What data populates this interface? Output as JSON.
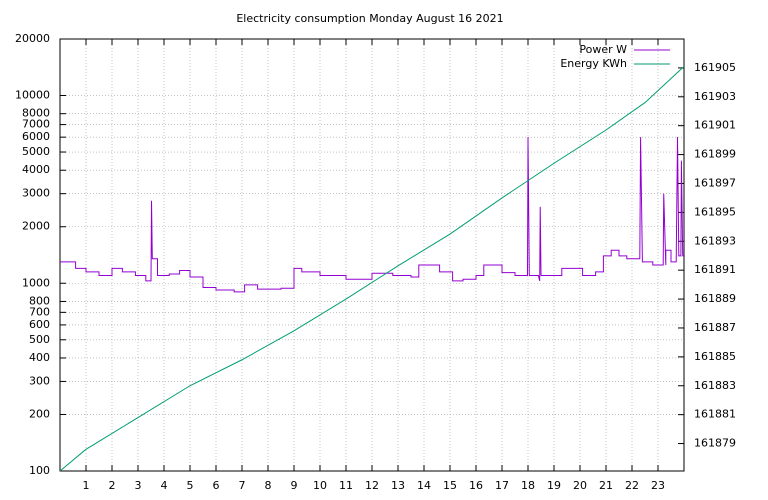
{
  "chart_data": {
    "type": "line",
    "title": "Electricity consumption Monday August 16 2021",
    "log_y": true,
    "grid": true,
    "legend": "top-right",
    "xlim": [
      0,
      24
    ],
    "xticks": [
      1,
      2,
      3,
      4,
      5,
      6,
      7,
      8,
      9,
      10,
      11,
      12,
      13,
      14,
      15,
      16,
      17,
      18,
      19,
      20,
      21,
      22,
      23
    ],
    "ylim": [
      100,
      20000
    ],
    "yticks": [
      100,
      200,
      300,
      400,
      500,
      600,
      700,
      800,
      1000,
      2000,
      3000,
      4000,
      5000,
      6000,
      7000,
      8000,
      10000,
      20000
    ],
    "y2lim": [
      161877.1,
      161907
    ],
    "y2ticks": [
      161879,
      161881,
      161883,
      161885,
      161887,
      161889,
      161891,
      161893,
      161895,
      161897,
      161899,
      161901,
      161903,
      161905
    ],
    "series": [
      {
        "name": "Power W",
        "color": "#9400d3",
        "x": [
          0,
          0.6,
          0.6,
          1,
          1,
          1.5,
          1.5,
          2,
          2,
          2.4,
          2.4,
          2.9,
          2.9,
          3.3,
          3.3,
          3.5,
          3.52,
          3.55,
          3.75,
          3.75,
          4.2,
          4.2,
          4.6,
          4.6,
          5,
          5,
          5.5,
          5.5,
          6,
          6,
          6.7,
          6.7,
          7.1,
          7.1,
          7.6,
          7.6,
          8.5,
          8.5,
          9,
          9,
          9.3,
          9.3,
          10,
          10,
          11,
          11,
          12,
          12,
          12.8,
          12.8,
          13.5,
          13.5,
          13.8,
          13.8,
          14.6,
          14.6,
          15.1,
          15.1,
          15.5,
          15.5,
          16,
          16,
          16.3,
          16.3,
          17,
          17,
          17.5,
          17.5,
          17.98,
          18,
          18.05,
          18.4,
          18.45,
          18.47,
          18.5,
          19.3,
          19.3,
          20.1,
          20.1,
          20.6,
          20.6,
          20.9,
          20.9,
          21.2,
          21.2,
          21.5,
          21.5,
          21.8,
          21.8,
          22.3,
          22.33,
          22.4,
          22.8,
          22.8,
          23.2,
          23.22,
          23.3,
          23.3,
          23.5,
          23.5,
          23.7,
          23.75,
          23.8,
          23.88,
          23.9,
          23.95,
          24
        ],
        "values": [
          1300,
          1300,
          1200,
          1200,
          1150,
          1150,
          1100,
          1100,
          1200,
          1200,
          1150,
          1150,
          1100,
          1100,
          1030,
          1030,
          2750,
          1350,
          1350,
          1100,
          1100,
          1120,
          1120,
          1170,
          1170,
          1080,
          1080,
          950,
          950,
          920,
          920,
          900,
          900,
          980,
          980,
          930,
          930,
          940,
          940,
          1200,
          1200,
          1150,
          1150,
          1100,
          1100,
          1050,
          1050,
          1130,
          1130,
          1100,
          1100,
          1080,
          1080,
          1250,
          1250,
          1150,
          1150,
          1030,
          1030,
          1050,
          1050,
          1100,
          1100,
          1250,
          1250,
          1140,
          1140,
          1100,
          1100,
          6000,
          1100,
          1100,
          1030,
          2550,
          1100,
          1100,
          1200,
          1200,
          1100,
          1100,
          1150,
          1150,
          1400,
          1400,
          1500,
          1500,
          1400,
          1400,
          1350,
          1350,
          6000,
          1300,
          1300,
          1250,
          1250,
          3000,
          1250,
          1500,
          1500,
          1300,
          1300,
          6000,
          1400,
          1400,
          4500,
          1400,
          1400
        ]
      },
      {
        "name": "Energy KWh",
        "color": "#009e73",
        "axis": "y2",
        "x": [
          0,
          1,
          3,
          5,
          7,
          9,
          11,
          13,
          15,
          17,
          19,
          21,
          22.5,
          24
        ],
        "values": [
          161877.1,
          161878.6,
          161880.8,
          161883.0,
          161884.8,
          161886.8,
          161889.0,
          161891.3,
          161893.5,
          161896.0,
          161898.4,
          161900.7,
          161902.6,
          161905.1
        ]
      }
    ]
  }
}
